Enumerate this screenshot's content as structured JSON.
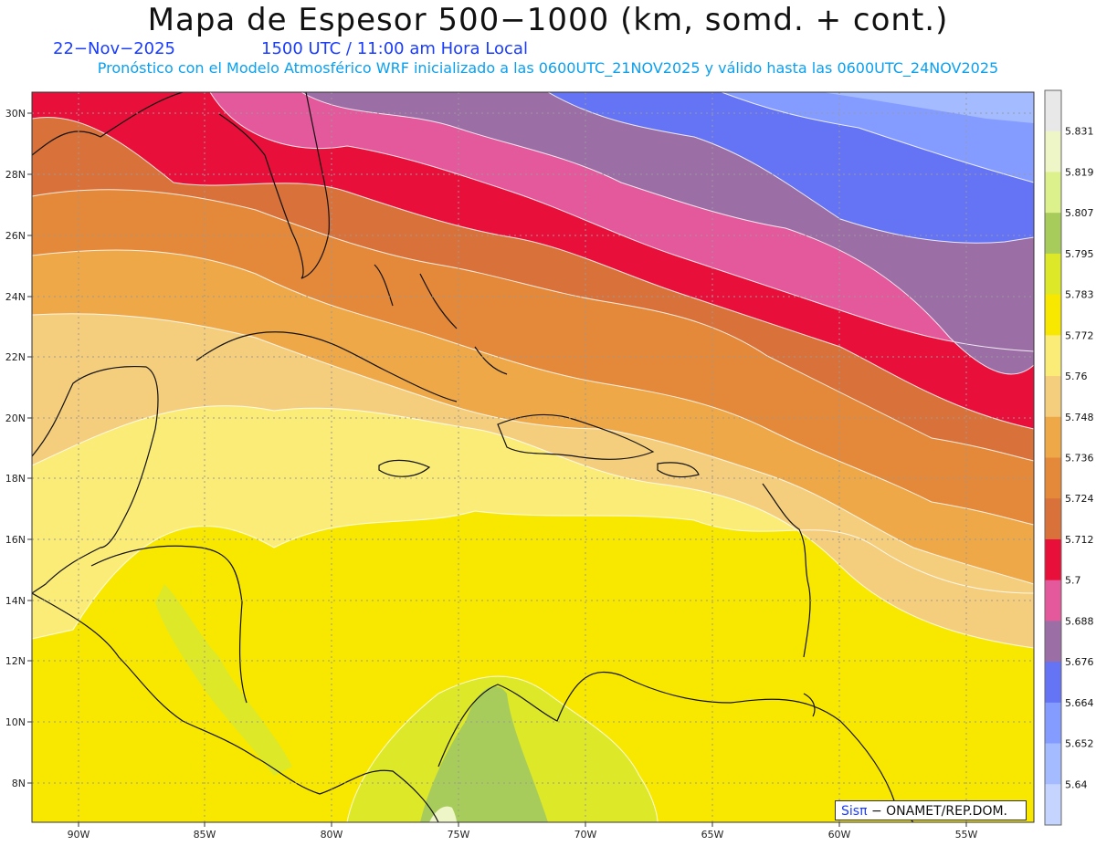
{
  "header": {
    "title": "Mapa de Espesor 500−1000 (km, somd. + cont.)",
    "date": "22−Nov−2025",
    "time": "1500 UTC / 11:00 am Hora Local",
    "subtitle": "Pronóstico con el Modelo Atmosférico WRF inicializado a las 0600UTC_21NOV2025 y válido hasta las  0600UTC_24NOV2025"
  },
  "axes": {
    "lat_labels": [
      "30N",
      "28N",
      "26N",
      "24N",
      "22N",
      "20N",
      "18N",
      "16N",
      "14N",
      "12N",
      "10N",
      "8N"
    ],
    "lon_labels": [
      "90W",
      "85W",
      "80W",
      "75W",
      "70W",
      "65W",
      "60W",
      "55W"
    ]
  },
  "colorbar": {
    "labels": [
      "5.831",
      "5.819",
      "5.807",
      "5.795",
      "5.783",
      "5.772",
      "5.76",
      "5.748",
      "5.736",
      "5.724",
      "5.712",
      "5.7",
      "5.688",
      "5.676",
      "5.664",
      "5.652",
      "5.64"
    ],
    "colors": [
      "#e8e8e8",
      "#eef6c8",
      "#dcf08c",
      "#a8cc5c",
      "#dce828",
      "#f8e800",
      "#fbec78",
      "#f4ce7c",
      "#eea848",
      "#e4883a",
      "#d8723a",
      "#e8103a",
      "#e4589c",
      "#9c6ea6",
      "#6474f4",
      "#849cff",
      "#a4bcff",
      "#c4d4ff"
    ]
  },
  "credit": {
    "sis": "Sisπ",
    "org": " − ONAMET/REP.DOM."
  }
}
